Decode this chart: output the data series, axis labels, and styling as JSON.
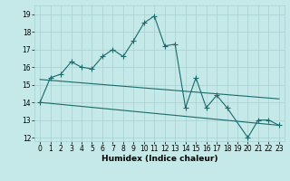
{
  "title": "",
  "xlabel": "Humidex (Indice chaleur)",
  "background_color": "#c5e8e8",
  "grid_color": "#a8d0d0",
  "line_color": "#1a6b6b",
  "xlim": [
    -0.5,
    23.5
  ],
  "ylim": [
    11.8,
    19.5
  ],
  "yticks": [
    12,
    13,
    14,
    15,
    16,
    17,
    18,
    19
  ],
  "xticks": [
    0,
    1,
    2,
    3,
    4,
    5,
    6,
    7,
    8,
    9,
    10,
    11,
    12,
    13,
    14,
    15,
    16,
    17,
    18,
    19,
    20,
    21,
    22,
    23
  ],
  "series1_x": [
    0,
    1,
    2,
    3,
    4,
    5,
    6,
    7,
    8,
    9,
    10,
    11,
    12,
    13,
    14,
    15,
    16,
    17,
    18,
    20,
    21,
    22,
    23
  ],
  "series1_y": [
    14.0,
    15.4,
    15.6,
    16.3,
    16.0,
    15.9,
    16.6,
    17.0,
    16.6,
    17.5,
    18.5,
    18.9,
    17.2,
    17.3,
    13.7,
    15.4,
    13.7,
    14.4,
    13.7,
    12.0,
    13.0,
    13.0,
    12.7
  ],
  "series2_x": [
    0,
    23
  ],
  "series2_y": [
    15.3,
    14.2
  ],
  "series3_x": [
    0,
    23
  ],
  "series3_y": [
    14.0,
    12.7
  ]
}
